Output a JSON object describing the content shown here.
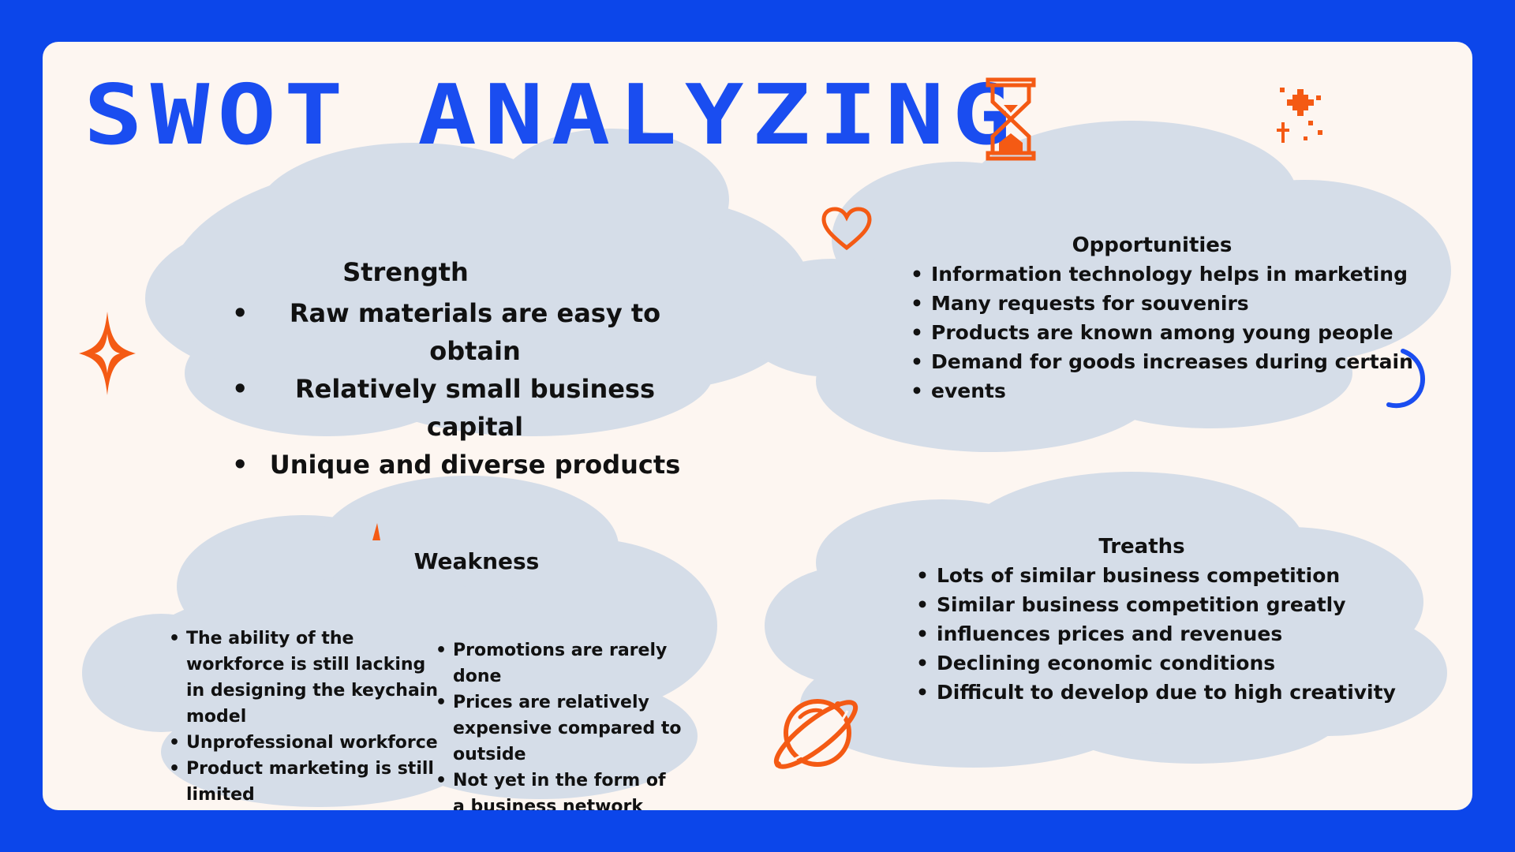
{
  "title": "SWOT ANALYZING",
  "colors": {
    "frame": "#0c46ea",
    "card": "#fdf6f1",
    "title": "#1a4df0",
    "cloud": "#d5dde8",
    "accent_orange": "#f45a14",
    "text": "#111111"
  },
  "decorations": [
    "hourglass-icon",
    "sparkle-icon",
    "heart-icon",
    "four-point-star-icon",
    "crescent-moon-icon",
    "planet-icon"
  ],
  "strength": {
    "heading": "Strength",
    "items": [
      "Raw materials are easy to obtain",
      "Relatively small business capital",
      "Unique and diverse products"
    ]
  },
  "opportunities": {
    "heading": "Opportunities",
    "items": [
      "Information technology helps in marketing",
      "Many requests for souvenirs",
      "Products are known among young people",
      "Demand for goods increases during certain",
      "events"
    ]
  },
  "weakness": {
    "heading": "Weakness",
    "col1": [
      "The ability of the workforce is still lacking in designing the keychain model",
      "Unprofessional workforce",
      "Product marketing is still limited"
    ],
    "col2": [
      "Promotions are rarely done",
      "Prices are relatively expensive compared to outside",
      "Not yet in the form of a business network"
    ]
  },
  "threats": {
    "heading": "Treaths",
    "items": [
      "Lots of similar business competition",
      "Similar business competition greatly",
      "influences prices and revenues",
      "Declining economic conditions",
      "Difficult to develop due to high creativity"
    ]
  }
}
